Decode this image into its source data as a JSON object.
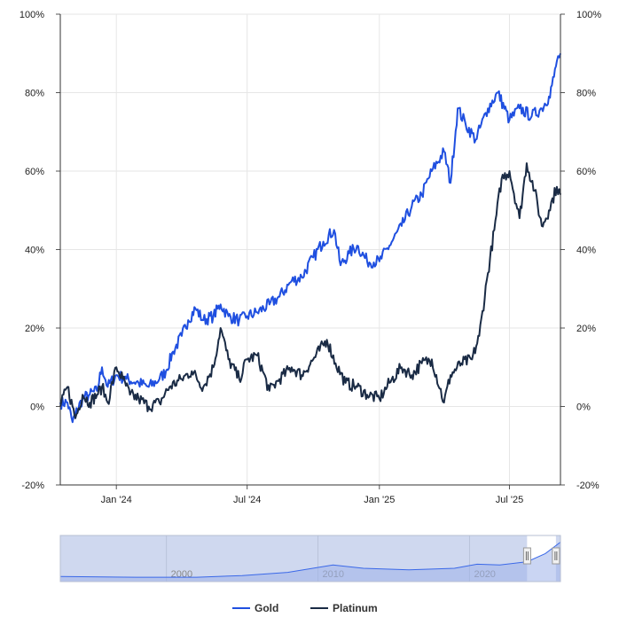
{
  "chart_data": {
    "type": "line",
    "title": "",
    "xlabel": "",
    "ylabel": "",
    "y_unit": "%",
    "ylim": [
      -20,
      100
    ],
    "xlim": [
      "2023-10-15",
      "2025-09-10"
    ],
    "grid": true,
    "legend_position": "bottom-center",
    "y_tick_labels": [
      "-20%",
      "0%",
      "20%",
      "40%",
      "60%",
      "80%",
      "100%"
    ],
    "y_tick_values": [
      -20,
      0,
      20,
      40,
      60,
      80,
      100
    ],
    "x_tick_labels": [
      "Jan '24",
      "Jul '24",
      "Jan '25",
      "Jul '25"
    ],
    "x_tick_dates": [
      "2024-01-01",
      "2024-07-01",
      "2025-01-01",
      "2025-07-01"
    ],
    "series": [
      {
        "name": "Gold",
        "color": "#1f4fe0",
        "points": [
          [
            "2023-10-15",
            1
          ],
          [
            "2023-10-25",
            1
          ],
          [
            "2023-11-01",
            -4
          ],
          [
            "2023-11-05",
            -2
          ],
          [
            "2023-11-15",
            2
          ],
          [
            "2023-11-25",
            3
          ],
          [
            "2023-12-05",
            4
          ],
          [
            "2023-12-12",
            10
          ],
          [
            "2023-12-20",
            5
          ],
          [
            "2024-01-01",
            8
          ],
          [
            "2024-01-15",
            7
          ],
          [
            "2024-02-01",
            6
          ],
          [
            "2024-02-15",
            5
          ],
          [
            "2024-03-01",
            7
          ],
          [
            "2024-03-10",
            9
          ],
          [
            "2024-03-20",
            14
          ],
          [
            "2024-04-01",
            18
          ],
          [
            "2024-04-10",
            22
          ],
          [
            "2024-04-20",
            25
          ],
          [
            "2024-05-01",
            22
          ],
          [
            "2024-05-15",
            23
          ],
          [
            "2024-05-25",
            26
          ],
          [
            "2024-06-05",
            23
          ],
          [
            "2024-06-20",
            22
          ],
          [
            "2024-07-01",
            23
          ],
          [
            "2024-07-15",
            24
          ],
          [
            "2024-08-01",
            26
          ],
          [
            "2024-08-15",
            28
          ],
          [
            "2024-09-01",
            32
          ],
          [
            "2024-09-15",
            33
          ],
          [
            "2024-10-01",
            38
          ],
          [
            "2024-10-15",
            42
          ],
          [
            "2024-10-30",
            45
          ],
          [
            "2024-11-08",
            36
          ],
          [
            "2024-11-20",
            39
          ],
          [
            "2024-12-01",
            41
          ],
          [
            "2024-12-15",
            37
          ],
          [
            "2025-01-01",
            37
          ],
          [
            "2025-01-15",
            41
          ],
          [
            "2025-02-01",
            46
          ],
          [
            "2025-02-15",
            51
          ],
          [
            "2025-03-01",
            54
          ],
          [
            "2025-03-15",
            60
          ],
          [
            "2025-04-01",
            65
          ],
          [
            "2025-04-10",
            57
          ],
          [
            "2025-04-20",
            76
          ],
          [
            "2025-05-01",
            72
          ],
          [
            "2025-05-15",
            68
          ],
          [
            "2025-06-01",
            76
          ],
          [
            "2025-06-15",
            80
          ],
          [
            "2025-07-01",
            73
          ],
          [
            "2025-07-15",
            76
          ],
          [
            "2025-08-01",
            74
          ],
          [
            "2025-08-15",
            76
          ],
          [
            "2025-08-25",
            79
          ],
          [
            "2025-09-01",
            84
          ],
          [
            "2025-09-05",
            88
          ],
          [
            "2025-09-10",
            90
          ]
        ]
      },
      {
        "name": "Platinum",
        "color": "#1a2b45",
        "points": [
          [
            "2023-10-15",
            0
          ],
          [
            "2023-10-25",
            5
          ],
          [
            "2023-11-01",
            0
          ],
          [
            "2023-11-05",
            -3
          ],
          [
            "2023-11-15",
            3
          ],
          [
            "2023-11-25",
            1
          ],
          [
            "2023-12-05",
            3
          ],
          [
            "2023-12-12",
            5
          ],
          [
            "2023-12-20",
            1
          ],
          [
            "2024-01-01",
            10
          ],
          [
            "2024-01-10",
            7
          ],
          [
            "2024-01-20",
            3
          ],
          [
            "2024-02-01",
            2
          ],
          [
            "2024-02-15",
            0
          ],
          [
            "2024-03-01",
            1
          ],
          [
            "2024-03-15",
            5
          ],
          [
            "2024-04-01",
            7
          ],
          [
            "2024-04-15",
            9
          ],
          [
            "2024-05-01",
            5
          ],
          [
            "2024-05-15",
            10
          ],
          [
            "2024-05-25",
            20
          ],
          [
            "2024-06-05",
            12
          ],
          [
            "2024-06-20",
            7
          ],
          [
            "2024-07-01",
            12
          ],
          [
            "2024-07-15",
            13
          ],
          [
            "2024-08-01",
            4
          ],
          [
            "2024-08-15",
            7
          ],
          [
            "2024-09-01",
            10
          ],
          [
            "2024-09-15",
            8
          ],
          [
            "2024-10-01",
            12
          ],
          [
            "2024-10-20",
            17
          ],
          [
            "2024-11-01",
            11
          ],
          [
            "2024-11-15",
            6
          ],
          [
            "2024-12-01",
            5
          ],
          [
            "2024-12-15",
            3
          ],
          [
            "2025-01-01",
            2
          ],
          [
            "2025-01-15",
            6
          ],
          [
            "2025-02-01",
            10
          ],
          [
            "2025-02-15",
            8
          ],
          [
            "2025-03-01",
            11
          ],
          [
            "2025-03-15",
            12
          ],
          [
            "2025-04-01",
            1
          ],
          [
            "2025-04-10",
            8
          ],
          [
            "2025-04-25",
            11
          ],
          [
            "2025-05-10",
            12
          ],
          [
            "2025-05-20",
            18
          ],
          [
            "2025-06-01",
            34
          ],
          [
            "2025-06-10",
            45
          ],
          [
            "2025-06-20",
            58
          ],
          [
            "2025-07-01",
            60
          ],
          [
            "2025-07-15",
            48
          ],
          [
            "2025-07-25",
            62
          ],
          [
            "2025-08-05",
            55
          ],
          [
            "2025-08-15",
            46
          ],
          [
            "2025-08-25",
            50
          ],
          [
            "2025-09-05",
            56
          ],
          [
            "2025-09-10",
            54
          ]
        ]
      }
    ]
  },
  "navigator": {
    "tick_labels": [
      "2000",
      "2010",
      "2020"
    ],
    "tick_years": [
      2000,
      2010,
      2020
    ],
    "year_range": [
      1993,
      2026
    ],
    "selected_range_years": [
      2023.8,
      2025.7
    ]
  },
  "legend": {
    "items": [
      {
        "label": "Gold",
        "color": "#1f4fe0"
      },
      {
        "label": "Platinum",
        "color": "#1a2b45"
      }
    ]
  }
}
